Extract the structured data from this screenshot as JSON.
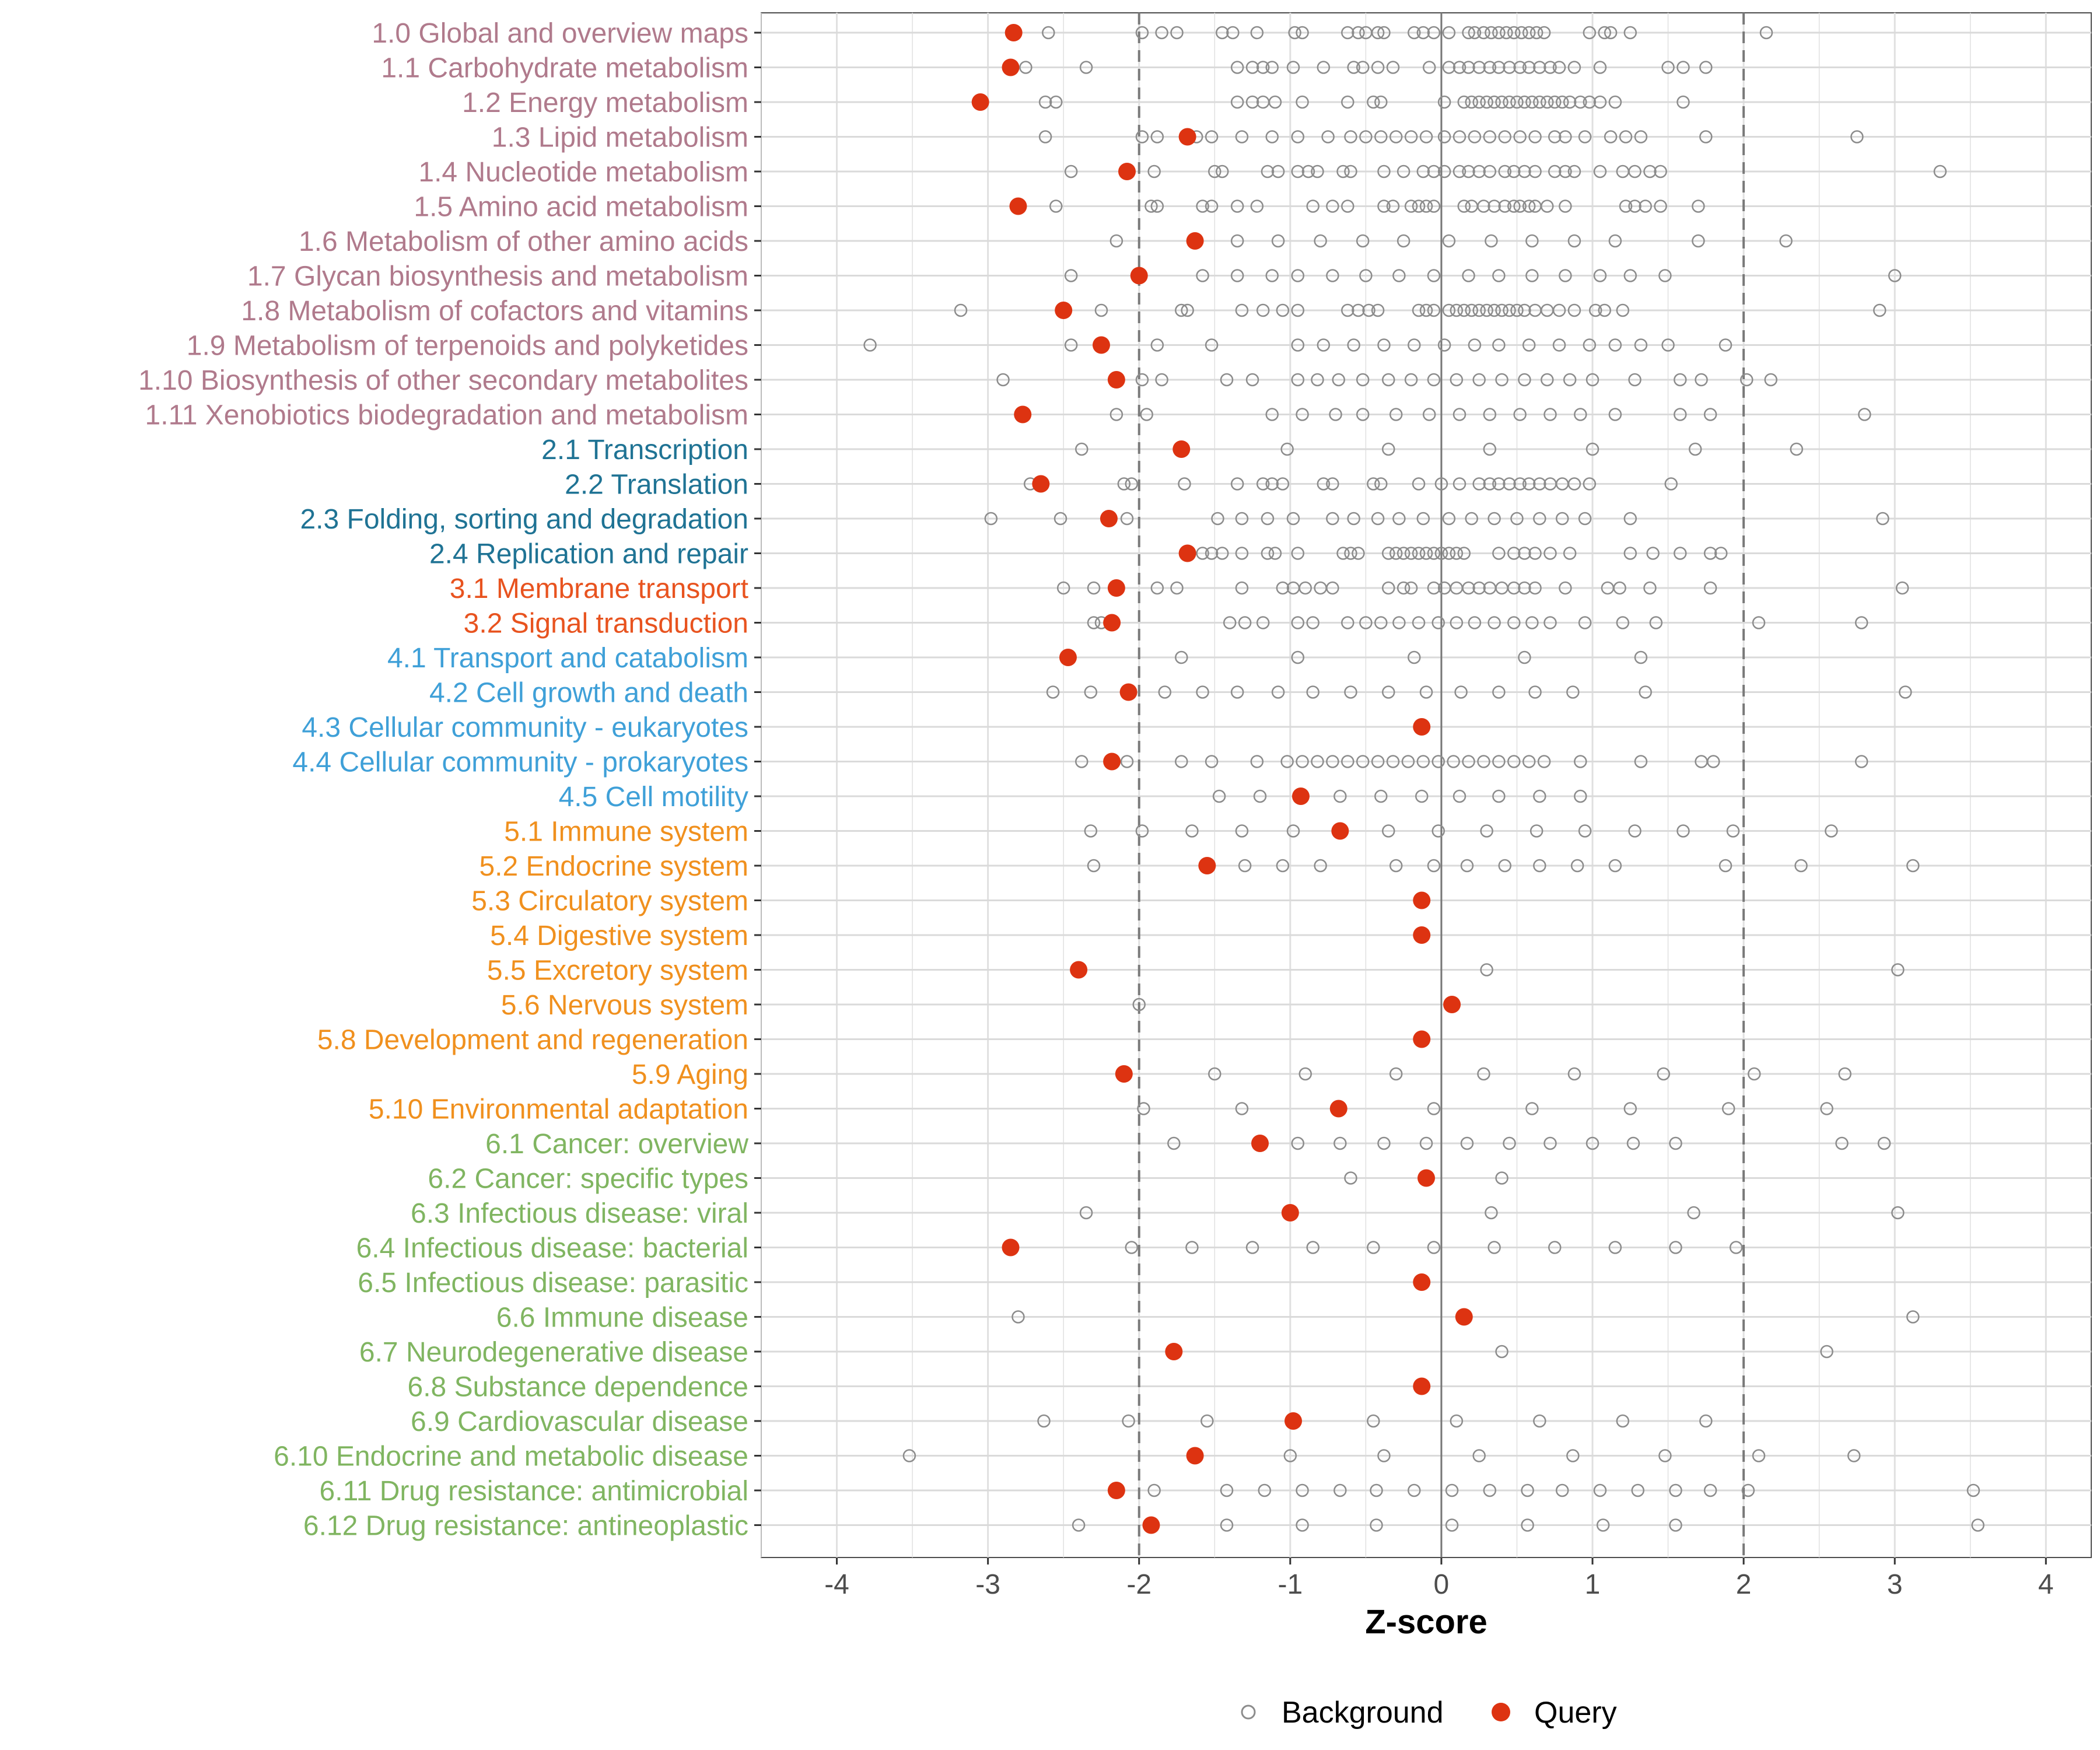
{
  "chart_data": {
    "type": "scatter",
    "title": "",
    "xlabel": "Z-score",
    "ylabel": "",
    "xlim": [
      -4.5,
      4.3
    ],
    "xticks": [
      -4,
      -3,
      -2,
      -1,
      0,
      1,
      2,
      3,
      4
    ],
    "xtick_labels": [
      "-4",
      "-3",
      "-2",
      "-1",
      "0",
      "1",
      "2",
      "3",
      "4"
    ],
    "threshold_lines": [
      -2,
      2
    ],
    "zero_line": 0,
    "legend": {
      "position": "bottom",
      "entries": [
        {
          "name": "Background",
          "marker": "open-circle",
          "color": "#8c8c8c"
        },
        {
          "name": "Query",
          "marker": "filled-circle",
          "color": "#dd3311"
        }
      ]
    },
    "category_colors": {
      "1": "#b07a8c",
      "2": "#1f7394",
      "3": "#e8531f",
      "4": "#3fa0d8",
      "5": "#f0901e",
      "6": "#80b561"
    },
    "categories": [
      {
        "label": "1.0 Global and overview maps",
        "group": "1",
        "query": -2.83,
        "background": [
          -2.6,
          -1.98,
          -1.85,
          -1.75,
          -1.45,
          -1.38,
          -1.22,
          -0.97,
          -0.92,
          -0.62,
          -0.55,
          -0.5,
          -0.42,
          -0.38,
          -0.18,
          -0.12,
          -0.05,
          0.05,
          0.18,
          0.22,
          0.28,
          0.33,
          0.38,
          0.43,
          0.48,
          0.53,
          0.58,
          0.63,
          0.68,
          0.98,
          1.08,
          1.12,
          1.25,
          2.15
        ]
      },
      {
        "label": "1.1 Carbohydrate metabolism",
        "group": "1",
        "query": -2.85,
        "background": [
          -2.75,
          -2.35,
          -1.35,
          -1.25,
          -1.18,
          -1.12,
          -0.98,
          -0.78,
          -0.58,
          -0.52,
          -0.42,
          -0.32,
          -0.08,
          0.05,
          0.12,
          0.18,
          0.25,
          0.32,
          0.38,
          0.45,
          0.52,
          0.58,
          0.65,
          0.72,
          0.78,
          0.88,
          1.05,
          1.5,
          1.6,
          1.75
        ]
      },
      {
        "label": "1.2 Energy metabolism",
        "group": "1",
        "query": -3.05,
        "background": [
          -2.62,
          -2.55,
          -1.35,
          -1.25,
          -1.18,
          -1.1,
          -0.92,
          -0.62,
          -0.45,
          -0.4,
          0.02,
          0.15,
          0.2,
          0.25,
          0.3,
          0.35,
          0.4,
          0.45,
          0.5,
          0.55,
          0.6,
          0.65,
          0.7,
          0.75,
          0.8,
          0.85,
          0.92,
          0.98,
          1.05,
          1.15,
          1.6
        ]
      },
      {
        "label": "1.3 Lipid metabolism",
        "group": "1",
        "query": -1.68,
        "background": [
          -2.62,
          -1.98,
          -1.88,
          -1.62,
          -1.52,
          -1.32,
          -1.12,
          -0.95,
          -0.75,
          -0.6,
          -0.5,
          -0.4,
          -0.3,
          -0.2,
          -0.1,
          0.02,
          0.12,
          0.22,
          0.32,
          0.42,
          0.52,
          0.62,
          0.75,
          0.82,
          0.95,
          1.12,
          1.22,
          1.32,
          1.75,
          2.75
        ]
      },
      {
        "label": "1.4 Nucleotide metabolism",
        "group": "1",
        "query": -2.08,
        "background": [
          -2.45,
          -1.9,
          -1.5,
          -1.45,
          -1.15,
          -1.08,
          -0.95,
          -0.88,
          -0.82,
          -0.65,
          -0.6,
          -0.38,
          -0.25,
          -0.12,
          -0.05,
          0.02,
          0.12,
          0.18,
          0.25,
          0.32,
          0.42,
          0.48,
          0.55,
          0.62,
          0.75,
          0.82,
          0.88,
          1.05,
          1.2,
          1.28,
          1.38,
          1.45,
          3.3
        ]
      },
      {
        "label": "1.5 Amino acid metabolism",
        "group": "1",
        "query": -2.8,
        "background": [
          -2.55,
          -1.92,
          -1.88,
          -1.58,
          -1.52,
          -1.35,
          -1.22,
          -0.85,
          -0.72,
          -0.62,
          -0.38,
          -0.32,
          -0.2,
          -0.15,
          -0.1,
          -0.05,
          0.15,
          0.2,
          0.28,
          0.35,
          0.42,
          0.48,
          0.52,
          0.58,
          0.62,
          0.7,
          0.82,
          1.22,
          1.28,
          1.35,
          1.45,
          1.7
        ]
      },
      {
        "label": "1.6 Metabolism of other amino acids",
        "group": "1",
        "query": -1.63,
        "background": [
          -2.15,
          -1.35,
          -1.08,
          -0.8,
          -0.52,
          -0.25,
          0.05,
          0.33,
          0.6,
          0.88,
          1.15,
          1.7,
          2.28
        ]
      },
      {
        "label": "1.7 Glycan biosynthesis and metabolism",
        "group": "1",
        "query": -2.0,
        "background": [
          -2.45,
          -1.58,
          -1.35,
          -1.12,
          -0.95,
          -0.72,
          -0.5,
          -0.28,
          -0.05,
          0.18,
          0.38,
          0.6,
          0.82,
          1.05,
          1.25,
          1.48,
          3.0
        ]
      },
      {
        "label": "1.8 Metabolism of cofactors and vitamins",
        "group": "1",
        "query": -2.5,
        "background": [
          -3.18,
          -2.25,
          -1.72,
          -1.68,
          -1.32,
          -1.18,
          -1.05,
          -0.95,
          -0.62,
          -0.55,
          -0.48,
          -0.42,
          -0.15,
          -0.1,
          -0.05,
          0.05,
          0.1,
          0.15,
          0.2,
          0.25,
          0.3,
          0.35,
          0.4,
          0.45,
          0.5,
          0.55,
          0.62,
          0.7,
          0.78,
          0.88,
          1.02,
          1.08,
          1.2,
          2.9
        ]
      },
      {
        "label": "1.9 Metabolism of terpenoids and polyketides",
        "group": "1",
        "query": -2.25,
        "background": [
          -3.78,
          -2.45,
          -1.88,
          -1.52,
          -0.95,
          -0.78,
          -0.58,
          -0.38,
          -0.18,
          0.02,
          0.22,
          0.38,
          0.58,
          0.78,
          0.98,
          1.15,
          1.32,
          1.5,
          1.88
        ]
      },
      {
        "label": "1.10 Biosynthesis of other secondary metabolites",
        "group": "1",
        "query": -2.15,
        "background": [
          -2.9,
          -1.98,
          -1.85,
          -1.42,
          -1.25,
          -0.95,
          -0.82,
          -0.68,
          -0.52,
          -0.35,
          -0.2,
          -0.05,
          0.1,
          0.25,
          0.4,
          0.55,
          0.7,
          0.85,
          1.0,
          1.28,
          1.58,
          1.72,
          2.02,
          2.18
        ]
      },
      {
        "label": "1.11 Xenobiotics biodegradation and metabolism",
        "group": "1",
        "query": -2.77,
        "background": [
          -2.15,
          -1.95,
          -1.12,
          -0.92,
          -0.7,
          -0.52,
          -0.3,
          -0.08,
          0.12,
          0.32,
          0.52,
          0.72,
          0.92,
          1.15,
          1.58,
          1.78,
          2.8
        ]
      },
      {
        "label": "2.1 Transcription",
        "group": "2",
        "query": -1.72,
        "background": [
          -2.38,
          -1.02,
          -0.35,
          0.32,
          1.0,
          1.68,
          2.35
        ]
      },
      {
        "label": "2.2 Translation",
        "group": "2",
        "query": -2.65,
        "background": [
          -2.72,
          -2.1,
          -2.05,
          -1.7,
          -1.35,
          -1.18,
          -1.12,
          -1.05,
          -0.78,
          -0.72,
          -0.45,
          -0.4,
          -0.15,
          0.0,
          0.12,
          0.25,
          0.32,
          0.38,
          0.45,
          0.52,
          0.58,
          0.65,
          0.72,
          0.8,
          0.88,
          0.98,
          1.52
        ]
      },
      {
        "label": "2.3 Folding, sorting and degradation",
        "group": "2",
        "query": -2.2,
        "background": [
          -2.98,
          -2.52,
          -2.08,
          -1.48,
          -1.32,
          -1.15,
          -0.98,
          -0.72,
          -0.58,
          -0.42,
          -0.28,
          -0.12,
          0.05,
          0.2,
          0.35,
          0.5,
          0.65,
          0.8,
          0.95,
          1.25,
          2.92
        ]
      },
      {
        "label": "2.4 Replication and repair",
        "group": "2",
        "query": -1.68,
        "background": [
          -1.58,
          -1.52,
          -1.45,
          -1.32,
          -1.15,
          -1.1,
          -0.95,
          -0.65,
          -0.6,
          -0.55,
          -0.35,
          -0.3,
          -0.25,
          -0.2,
          -0.15,
          -0.1,
          -0.05,
          0.0,
          0.05,
          0.1,
          0.15,
          0.38,
          0.48,
          0.55,
          0.62,
          0.72,
          0.85,
          1.25,
          1.4,
          1.58,
          1.78,
          1.85
        ]
      },
      {
        "label": "3.1 Membrane transport",
        "group": "3",
        "query": -2.15,
        "background": [
          -2.5,
          -2.3,
          -1.88,
          -1.75,
          -1.32,
          -1.05,
          -0.98,
          -0.9,
          -0.8,
          -0.72,
          -0.35,
          -0.25,
          -0.2,
          -0.05,
          0.02,
          0.1,
          0.18,
          0.25,
          0.32,
          0.4,
          0.48,
          0.55,
          0.62,
          0.82,
          1.1,
          1.18,
          1.38,
          1.78,
          3.05
        ]
      },
      {
        "label": "3.2 Signal transduction",
        "group": "3",
        "query": -2.18,
        "background": [
          -2.3,
          -2.25,
          -1.4,
          -1.3,
          -1.18,
          -0.95,
          -0.85,
          -0.62,
          -0.5,
          -0.4,
          -0.28,
          -0.15,
          -0.02,
          0.1,
          0.22,
          0.35,
          0.48,
          0.6,
          0.72,
          0.95,
          1.2,
          1.42,
          2.1,
          2.78
        ]
      },
      {
        "label": "4.1 Transport and catabolism",
        "group": "4",
        "query": -2.47,
        "background": [
          -1.72,
          -0.95,
          -0.18,
          0.55,
          1.32
        ]
      },
      {
        "label": "4.2 Cell growth and death",
        "group": "4",
        "query": -2.07,
        "background": [
          -2.57,
          -2.32,
          -1.83,
          -1.58,
          -1.35,
          -1.08,
          -0.85,
          -0.6,
          -0.35,
          -0.1,
          0.13,
          0.38,
          0.62,
          0.87,
          1.35,
          3.07
        ]
      },
      {
        "label": "4.3 Cellular community - eukaryotes",
        "group": "4",
        "query": -0.13,
        "background": []
      },
      {
        "label": "4.4 Cellular community - prokaryotes",
        "group": "4",
        "query": -2.18,
        "background": [
          -2.38,
          -2.08,
          -1.72,
          -1.52,
          -1.22,
          -1.02,
          -0.92,
          -0.82,
          -0.72,
          -0.62,
          -0.52,
          -0.42,
          -0.32,
          -0.22,
          -0.12,
          -0.02,
          0.08,
          0.18,
          0.28,
          0.38,
          0.48,
          0.58,
          0.68,
          0.92,
          1.32,
          1.72,
          1.8,
          2.78
        ]
      },
      {
        "label": "4.5 Cell motility",
        "group": "4",
        "query": -0.93,
        "background": [
          -1.47,
          -1.2,
          -0.67,
          -0.4,
          -0.13,
          0.12,
          0.38,
          0.65,
          0.92
        ]
      },
      {
        "label": "5.1 Immune system",
        "group": "5",
        "query": -0.67,
        "background": [
          -2.32,
          -1.98,
          -1.65,
          -1.32,
          -0.98,
          -0.35,
          -0.02,
          0.3,
          0.63,
          0.95,
          1.28,
          1.6,
          1.93,
          2.58
        ]
      },
      {
        "label": "5.2 Endocrine system",
        "group": "5",
        "query": -1.55,
        "background": [
          -2.3,
          -1.3,
          -1.05,
          -0.8,
          -0.3,
          -0.05,
          0.17,
          0.42,
          0.65,
          0.9,
          1.15,
          1.88,
          2.38,
          3.12
        ]
      },
      {
        "label": "5.3 Circulatory system",
        "group": "5",
        "query": -0.13,
        "background": []
      },
      {
        "label": "5.4 Digestive system",
        "group": "5",
        "query": -0.13,
        "background": []
      },
      {
        "label": "5.5 Excretory system",
        "group": "5",
        "query": -2.4,
        "background": [
          0.3,
          3.02
        ]
      },
      {
        "label": "5.6 Nervous system",
        "group": "5",
        "query": 0.07,
        "background": [
          -2.0
        ]
      },
      {
        "label": "5.8 Development and regeneration",
        "group": "5",
        "query": -0.13,
        "background": []
      },
      {
        "label": "5.9 Aging",
        "group": "5",
        "query": -2.1,
        "background": [
          -1.5,
          -0.9,
          -0.3,
          0.28,
          0.88,
          1.47,
          2.07,
          2.67
        ]
      },
      {
        "label": "5.10 Environmental adaptation",
        "group": "5",
        "query": -0.68,
        "background": [
          -1.97,
          -1.32,
          -0.05,
          0.6,
          1.25,
          1.9,
          2.55
        ]
      },
      {
        "label": "6.1 Cancer: overview",
        "group": "6",
        "query": -1.2,
        "background": [
          -1.77,
          -0.95,
          -0.67,
          -0.38,
          -0.1,
          0.17,
          0.45,
          0.72,
          1.0,
          1.27,
          1.55,
          2.65,
          2.93
        ]
      },
      {
        "label": "6.2 Cancer: specific types",
        "group": "6",
        "query": -0.1,
        "background": [
          -0.6,
          0.4
        ]
      },
      {
        "label": "6.3 Infectious disease: viral",
        "group": "6",
        "query": -1.0,
        "background": [
          -2.35,
          0.33,
          1.67,
          3.02
        ]
      },
      {
        "label": "6.4 Infectious disease: bacterial",
        "group": "6",
        "query": -2.85,
        "background": [
          -2.05,
          -1.65,
          -1.25,
          -0.85,
          -0.45,
          -0.05,
          0.35,
          0.75,
          1.15,
          1.55,
          1.95
        ]
      },
      {
        "label": "6.5 Infectious disease: parasitic",
        "group": "6",
        "query": -0.13,
        "background": []
      },
      {
        "label": "6.6 Immune disease",
        "group": "6",
        "query": 0.15,
        "background": [
          -2.8,
          3.12
        ]
      },
      {
        "label": "6.7 Neurodegenerative disease",
        "group": "6",
        "query": -1.77,
        "background": [
          0.4,
          2.55
        ]
      },
      {
        "label": "6.8 Substance dependence",
        "group": "6",
        "query": -0.13,
        "background": []
      },
      {
        "label": "6.9 Cardiovascular disease",
        "group": "6",
        "query": -0.98,
        "background": [
          -2.63,
          -2.07,
          -1.55,
          -0.45,
          0.1,
          0.65,
          1.2,
          1.75
        ]
      },
      {
        "label": "6.10 Endocrine and metabolic disease",
        "group": "6",
        "query": -1.63,
        "background": [
          -3.52,
          -1.0,
          -0.38,
          0.25,
          0.87,
          1.48,
          2.1,
          2.73
        ]
      },
      {
        "label": "6.11 Drug resistance: antimicrobial",
        "group": "6",
        "query": -2.15,
        "background": [
          -1.9,
          -1.42,
          -1.17,
          -0.92,
          -0.67,
          -0.43,
          -0.18,
          0.07,
          0.32,
          0.57,
          0.8,
          1.05,
          1.3,
          1.55,
          1.78,
          2.03,
          3.52
        ]
      },
      {
        "label": "6.12 Drug resistance: antineoplastic",
        "group": "6",
        "query": -1.92,
        "background": [
          -2.4,
          -1.42,
          -0.92,
          -0.43,
          0.07,
          0.57,
          1.07,
          1.55,
          3.55
        ]
      }
    ]
  }
}
